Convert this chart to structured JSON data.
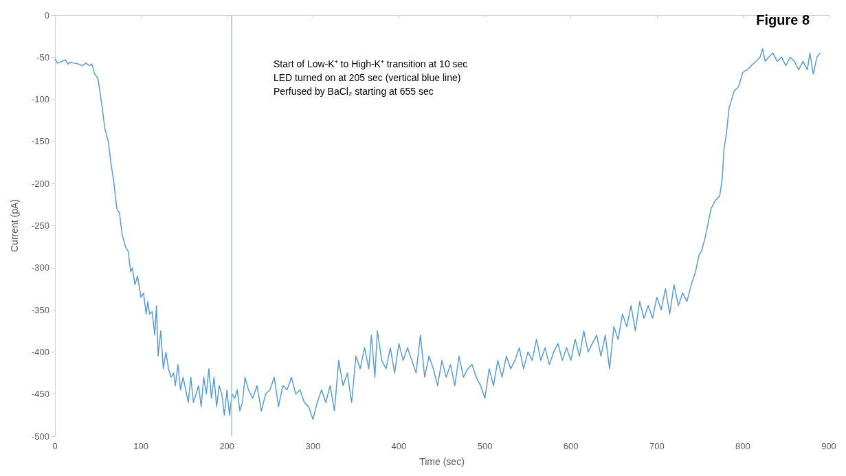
{
  "chart_data": {
    "type": "line",
    "title": "Figure 8",
    "xlabel": "Time (sec)",
    "ylabel": "Current (pA)",
    "annotations": [
      "Start of Low-K⁺ to High-K⁺ transition at 10 sec",
      "LED turned on at 205 sec (vertical blue line)",
      "Perfused by BaCl₂ starting at 655 sec"
    ],
    "xlim": [
      0,
      900
    ],
    "xticks": [
      0,
      100,
      200,
      300,
      400,
      500,
      600,
      700,
      800,
      900
    ],
    "ylim": [
      -500,
      0
    ],
    "yticks": [
      -500,
      -450,
      -400,
      -350,
      -300,
      -250,
      -200,
      -150,
      -100,
      -50,
      0
    ],
    "grid": false,
    "marker": "none",
    "line_style": "solid",
    "ref_lines": [
      {
        "axis": "x",
        "value": 205,
        "color": "#9dc3e6"
      }
    ],
    "series": [
      {
        "color": "#5b9bd5",
        "x": [
          0,
          3,
          8,
          12,
          15,
          18,
          22,
          27,
          32,
          36,
          40,
          43,
          46,
          50,
          55,
          58,
          62,
          65,
          68,
          72,
          75,
          78,
          82,
          85,
          88,
          90,
          93,
          96,
          100,
          103,
          106,
          108,
          110,
          113,
          116,
          118,
          120,
          123,
          126,
          129,
          132,
          135,
          138,
          140,
          143,
          146,
          149,
          152,
          155,
          158,
          161,
          164,
          167,
          170,
          173,
          176,
          179,
          182,
          185,
          188,
          191,
          194,
          197,
          200,
          203,
          206,
          209,
          212,
          215,
          218,
          221,
          225,
          230,
          235,
          240,
          245,
          250,
          255,
          260,
          265,
          270,
          275,
          280,
          285,
          290,
          295,
          300,
          305,
          310,
          315,
          320,
          325,
          330,
          335,
          340,
          345,
          350,
          355,
          360,
          365,
          368,
          372,
          375,
          380,
          385,
          390,
          395,
          400,
          405,
          410,
          415,
          420,
          425,
          430,
          435,
          440,
          445,
          450,
          455,
          460,
          465,
          470,
          475,
          480,
          485,
          490,
          495,
          500,
          505,
          510,
          515,
          520,
          525,
          530,
          535,
          540,
          545,
          550,
          555,
          560,
          565,
          570,
          575,
          580,
          585,
          590,
          595,
          600,
          605,
          610,
          615,
          620,
          625,
          630,
          635,
          640,
          645,
          650,
          655,
          660,
          665,
          670,
          675,
          680,
          685,
          690,
          695,
          700,
          705,
          710,
          715,
          720,
          725,
          730,
          735,
          740,
          745,
          749,
          752,
          756,
          760,
          763,
          768,
          773,
          776,
          778,
          781,
          784,
          787,
          790,
          795,
          800,
          805,
          810,
          815,
          820,
          823,
          826,
          830,
          835,
          840,
          845,
          850,
          855,
          860,
          865,
          870,
          875,
          878,
          882,
          886,
          890
        ],
        "values": [
          -52,
          -57,
          -55,
          -53,
          -58,
          -56,
          -57,
          -58,
          -60,
          -57,
          -60,
          -58,
          -70,
          -75,
          -110,
          -135,
          -150,
          -175,
          -195,
          -230,
          -235,
          -260,
          -275,
          -280,
          -305,
          -300,
          -320,
          -310,
          -335,
          -330,
          -355,
          -340,
          -355,
          -352,
          -380,
          -345,
          -405,
          -375,
          -420,
          -400,
          -420,
          -430,
          -425,
          -440,
          -415,
          -445,
          -430,
          -445,
          -460,
          -430,
          -460,
          -450,
          -440,
          -465,
          -430,
          -450,
          -420,
          -455,
          -430,
          -465,
          -440,
          -450,
          -475,
          -445,
          -475,
          -450,
          -455,
          -445,
          -470,
          -460,
          -430,
          -445,
          -455,
          -440,
          -470,
          -450,
          -445,
          -430,
          -465,
          -440,
          -445,
          -430,
          -450,
          -445,
          -460,
          -465,
          -480,
          -460,
          -445,
          -460,
          -440,
          -470,
          -410,
          -440,
          -425,
          -460,
          -405,
          -420,
          -395,
          -420,
          -380,
          -430,
          -375,
          -410,
          -420,
          -395,
          -425,
          -390,
          -410,
          -395,
          -410,
          -425,
          -380,
          -430,
          -405,
          -420,
          -440,
          -410,
          -430,
          -415,
          -440,
          -405,
          -430,
          -420,
          -415,
          -430,
          -440,
          -455,
          -420,
          -440,
          -410,
          -430,
          -405,
          -420,
          -410,
          -395,
          -420,
          -400,
          -410,
          -385,
          -410,
          -395,
          -415,
          -400,
          -390,
          -410,
          -395,
          -410,
          -385,
          -405,
          -375,
          -400,
          -390,
          -380,
          -405,
          -380,
          -420,
          -370,
          -385,
          -355,
          -370,
          -345,
          -375,
          -340,
          -360,
          -345,
          -360,
          -335,
          -350,
          -325,
          -355,
          -320,
          -345,
          -330,
          -340,
          -320,
          -305,
          -285,
          -280,
          -265,
          -245,
          -230,
          -220,
          -215,
          -195,
          -160,
          -140,
          -110,
          -100,
          -90,
          -85,
          -68,
          -65,
          -60,
          -55,
          -50,
          -40,
          -55,
          -50,
          -45,
          -55,
          -50,
          -60,
          -50,
          -55,
          -65,
          -55,
          -65,
          -45,
          -70,
          -50,
          -45
        ]
      }
    ]
  }
}
